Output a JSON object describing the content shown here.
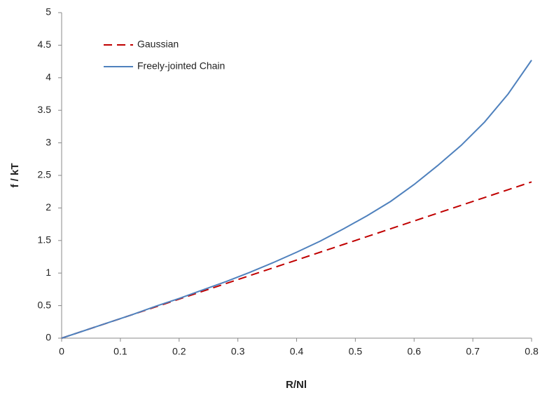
{
  "chart_data": {
    "type": "line",
    "x_label": "R/Nl",
    "y_label": "f / kT",
    "x": [
      0,
      0.04,
      0.08,
      0.12,
      0.16,
      0.2,
      0.24,
      0.28,
      0.32,
      0.36,
      0.4,
      0.44,
      0.48,
      0.52,
      0.56,
      0.6,
      0.64,
      0.68,
      0.72,
      0.76,
      0.8
    ],
    "series": [
      {
        "name": "Gaussian",
        "color": "#c00000",
        "dashed": true,
        "values": [
          0,
          0.12,
          0.24,
          0.36,
          0.48,
          0.6,
          0.72,
          0.84,
          0.96,
          1.08,
          1.2,
          1.32,
          1.44,
          1.56,
          1.68,
          1.8,
          1.92,
          2.04,
          2.16,
          2.28,
          2.4
        ]
      },
      {
        "name": "Freely-jointed Chain",
        "color": "#4f81bd",
        "dashed": false,
        "values": [
          0,
          0.12,
          0.24,
          0.36,
          0.49,
          0.61,
          0.74,
          0.87,
          1.01,
          1.16,
          1.32,
          1.49,
          1.68,
          1.88,
          2.1,
          2.36,
          2.65,
          2.96,
          3.32,
          3.75,
          4.27
        ]
      }
    ],
    "xlim": [
      0,
      0.8
    ],
    "xticks": [
      0,
      0.1,
      0.2,
      0.3,
      0.4,
      0.5,
      0.6,
      0.7,
      0.8
    ],
    "ylim": [
      0,
      5
    ],
    "yticks": [
      0,
      0.5,
      1,
      1.5,
      2,
      2.5,
      3,
      3.5,
      4,
      4.5,
      5
    ],
    "grid": false,
    "legend": "upper-left"
  }
}
